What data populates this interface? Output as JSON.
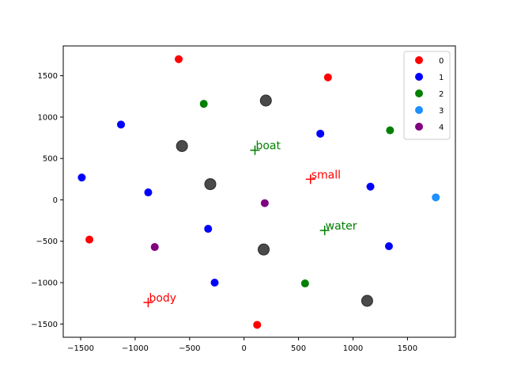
{
  "chart_data": {
    "type": "scatter",
    "xlim": [
      -1660,
      1940
    ],
    "ylim": [
      -1660,
      1860
    ],
    "x_ticks": [
      -1500,
      -1000,
      -500,
      0,
      500,
      1000,
      1500
    ],
    "y_ticks": [
      -1500,
      -1000,
      -500,
      0,
      500,
      1000,
      1500
    ],
    "grid": false,
    "legend_placement": "top-right",
    "series": [
      {
        "name": "0",
        "color": "#ff0000",
        "points": [
          [
            -600,
            1700
          ],
          [
            770,
            1480
          ],
          [
            -1420,
            -480
          ],
          [
            120,
            -1510
          ]
        ]
      },
      {
        "name": "1",
        "color": "#0000ff",
        "points": [
          [
            -1130,
            910
          ],
          [
            700,
            800
          ],
          [
            -1490,
            270
          ],
          [
            -880,
            90
          ],
          [
            1160,
            160
          ],
          [
            -330,
            -350
          ],
          [
            1330,
            -560
          ],
          [
            -270,
            -1000
          ]
        ]
      },
      {
        "name": "2",
        "color": "#008000",
        "points": [
          [
            -370,
            1160
          ],
          [
            1340,
            840
          ],
          [
            560,
            -1010
          ]
        ]
      },
      {
        "name": "3",
        "color": "#1e90ff",
        "points": [
          [
            1760,
            30
          ]
        ]
      },
      {
        "name": "4",
        "color": "#800080",
        "points": [
          [
            190,
            -40
          ],
          [
            -820,
            -570
          ]
        ]
      }
    ],
    "centers": {
      "color": "#404040",
      "points": [
        [
          200,
          1200
        ],
        [
          -570,
          650
        ],
        [
          -310,
          190
        ],
        [
          180,
          -600
        ],
        [
          1130,
          -1220
        ]
      ]
    },
    "annotations": [
      {
        "text": "boat",
        "x": 100,
        "y": 600,
        "color": "#008000"
      },
      {
        "text": "small",
        "x": 610,
        "y": 250,
        "color": "#ff0000"
      },
      {
        "text": "water",
        "x": 740,
        "y": -370,
        "color": "#008000"
      },
      {
        "text": "body",
        "x": -880,
        "y": -1240,
        "color": "#ff0000"
      }
    ]
  }
}
